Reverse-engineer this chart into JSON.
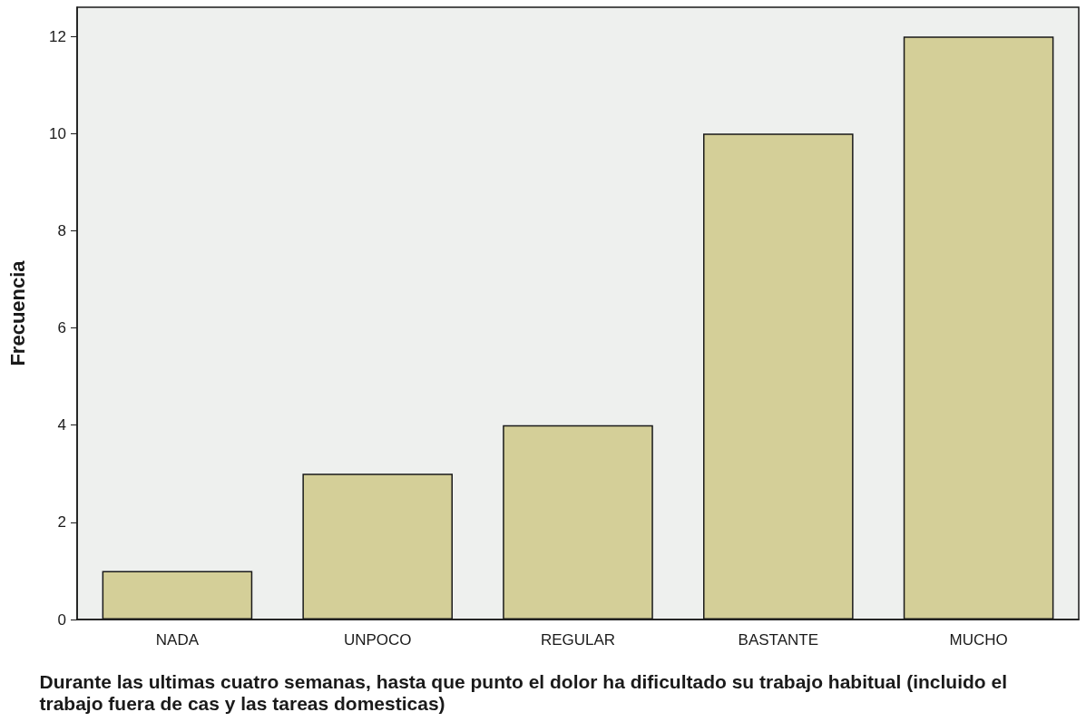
{
  "chart_data": {
    "type": "bar",
    "xlabel": "Durante las ultimas cuatro semanas, hasta que punto el dolor ha dificultado su trabajo habitual (incluido el trabajo fuera de cas y las tareas domesticas)",
    "ylabel": "Frecuencia",
    "categories": [
      "NADA",
      "UNPOCO",
      "REGULAR",
      "BASTANTE",
      "MUCHO"
    ],
    "values": [
      1,
      3,
      4,
      10,
      12
    ],
    "color": "#d4cf98",
    "ylim": [
      0,
      12.6
    ],
    "yticks": [
      0,
      2,
      4,
      6,
      8,
      10,
      12
    ],
    "grid": false
  }
}
